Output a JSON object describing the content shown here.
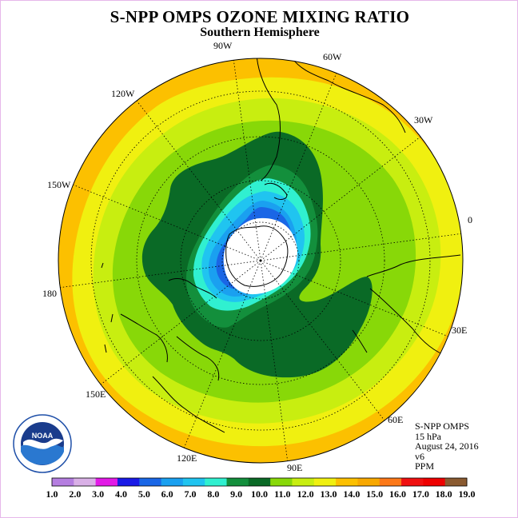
{
  "title": "S-NPP OMPS OZONE MIXING RATIO",
  "subtitle": "Southern Hemisphere",
  "info": {
    "instrument": "S-NPP OMPS",
    "level": "15 hPa",
    "date": "August 24, 2016",
    "version": "v6",
    "units": "PPM"
  },
  "longitude_labels": [
    "0",
    "30E",
    "60E",
    "90E",
    "120E",
    "150E",
    "180",
    "150W",
    "120W",
    "90W",
    "60W",
    "30W"
  ],
  "logo_text": "NOAA",
  "map_description_colors": {
    "land_outline": "#000000",
    "grid": "#000000",
    "no_data_polar": "#ffffff"
  },
  "colorbar": {
    "ticks": [
      "1.0",
      "2.0",
      "3.0",
      "4.0",
      "5.0",
      "6.0",
      "7.0",
      "8.0",
      "9.0",
      "10.0",
      "11.0",
      "12.0",
      "13.0",
      "14.0",
      "15.0",
      "16.0",
      "17.0",
      "18.0",
      "19.0"
    ],
    "colors": [
      "#b57ee0",
      "#d9b0e6",
      "#e21ae6",
      "#1a1ae6",
      "#1a66e6",
      "#1aa0f0",
      "#20c4f0",
      "#30f0d0",
      "#138f3c",
      "#0a6a26",
      "#88d808",
      "#c8ee10",
      "#f0f010",
      "#fcc000",
      "#f8a800",
      "#fc7818",
      "#f01010",
      "#ee0000",
      "#8a5a30"
    ]
  },
  "chart_data": {
    "type": "heatmap",
    "title": "S-NPP OMPS OZONE MIXING RATIO",
    "subtitle": "Southern Hemisphere",
    "units": "PPM",
    "levels": [
      1.0,
      2.0,
      3.0,
      4.0,
      5.0,
      6.0,
      7.0,
      8.0,
      9.0,
      10.0,
      11.0,
      12.0,
      13.0,
      14.0,
      15.0,
      16.0,
      17.0,
      18.0,
      19.0
    ],
    "projection": "south polar stereographic",
    "pressure_level": "15 hPa",
    "date": "August 24, 2016"
  }
}
